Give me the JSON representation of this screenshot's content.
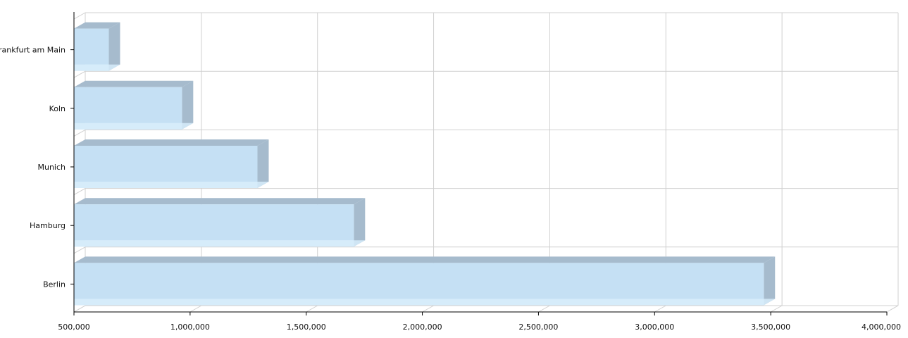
{
  "chart_data": {
    "type": "bar",
    "orientation": "horizontal",
    "style": "3d",
    "categories": [
      "Frankfurt am Main",
      "Koln",
      "Munich",
      "Hamburg",
      "Berlin"
    ],
    "values": [
      650000,
      965000,
      1290000,
      1705000,
      3470000
    ],
    "xlim": [
      500000,
      4000000
    ],
    "x_ticks": [
      500000,
      1000000,
      1500000,
      2000000,
      2500000,
      3000000,
      3500000,
      4000000
    ],
    "x_tick_labels": [
      "500,000",
      "1,000,000",
      "1,500,000",
      "2,000,000",
      "2,500,000",
      "3,000,000",
      "3,500,000",
      "4,000,000"
    ],
    "grid": true,
    "legend": "none",
    "colors": {
      "bar_front": "#c5e0f4",
      "bar_top": "#a6bbcd",
      "bar_side": "#a6bbcd",
      "bar_bottom": "#d6ecfa",
      "grid": "#d0d0d0",
      "axis": "#000000"
    }
  }
}
